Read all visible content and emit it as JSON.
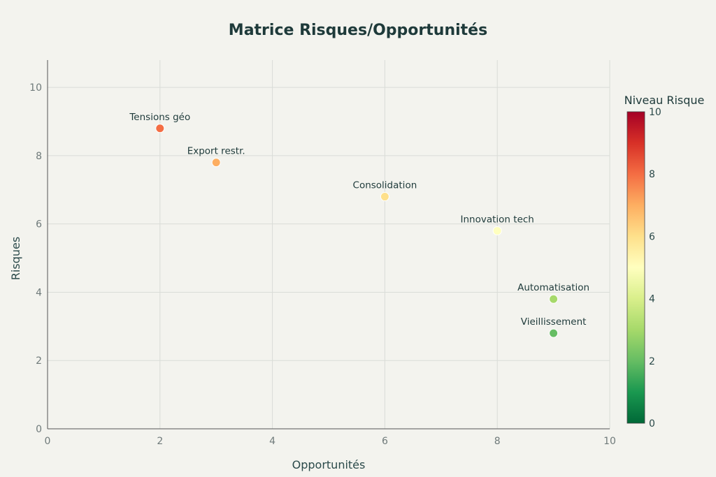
{
  "chart_data": {
    "type": "scatter",
    "title": "Matrice Risques/Opportunités",
    "xlabel": "Opportunités",
    "ylabel": "Risques",
    "xlim": [
      0,
      10
    ],
    "ylim": [
      0,
      10.8
    ],
    "xticks": [
      "0",
      "2",
      "4",
      "6",
      "8",
      "10"
    ],
    "yticks": [
      "0",
      "2",
      "4",
      "6",
      "8",
      "10"
    ],
    "grid": true,
    "points": [
      {
        "label": "Tensions géo",
        "x": 2,
        "y": 8.8,
        "risk": 8
      },
      {
        "label": "Export restr.",
        "x": 3,
        "y": 7.8,
        "risk": 7
      },
      {
        "label": "Consolidation",
        "x": 6,
        "y": 6.8,
        "risk": 6
      },
      {
        "label": "Innovation tech",
        "x": 8,
        "y": 5.8,
        "risk": 5
      },
      {
        "label": "Automatisation",
        "x": 9,
        "y": 3.8,
        "risk": 3
      },
      {
        "label": "Vieillissement",
        "x": 9,
        "y": 2.8,
        "risk": 2
      }
    ],
    "colorbar": {
      "title": "Niveau Risque",
      "range": [
        0,
        10
      ],
      "ticks": [
        "0",
        "2",
        "4",
        "6",
        "8",
        "10"
      ],
      "colorscale": [
        "#006837",
        "#1a9850",
        "#66bd63",
        "#a6d96a",
        "#d9ef8b",
        "#ffffbf",
        "#fee08b",
        "#fdae61",
        "#f46d43",
        "#d73027",
        "#a50026"
      ]
    }
  }
}
